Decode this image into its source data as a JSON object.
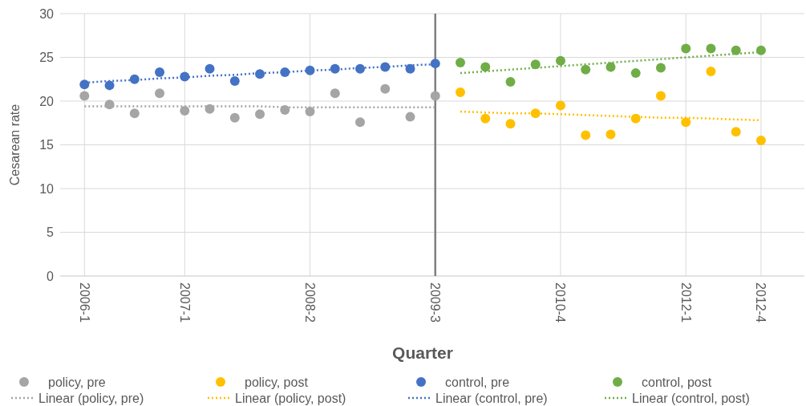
{
  "chart_data": {
    "type": "scatter",
    "xlabel": "Quarter",
    "ylabel": "Cesarean rate",
    "categories": [
      "2006-1",
      null,
      null,
      null,
      "2007-1",
      null,
      null,
      null,
      null,
      "2008-2",
      null,
      null,
      null,
      null,
      "2009-3",
      null,
      null,
      null,
      null,
      "2010-4",
      null,
      null,
      null,
      null,
      "2012-1",
      null,
      null,
      "2012-4"
    ],
    "ylim": [
      0,
      30
    ],
    "yticks": [
      0,
      5,
      10,
      15,
      20,
      25,
      30
    ],
    "grid": true,
    "legend": "bottom",
    "marker": "circle",
    "ref_lines": [
      {
        "axis": "x",
        "value": "2009-3",
        "color": "#7f7f7f"
      }
    ],
    "series": [
      {
        "name": "policy, pre",
        "color": "#a5a5a5",
        "values": [
          20.6,
          19.6,
          18.6,
          20.9,
          18.9,
          19.1,
          18.1,
          18.5,
          19.0,
          18.8,
          20.9,
          17.6,
          21.4,
          18.2,
          20.6,
          null,
          null,
          null,
          null,
          null,
          null,
          null,
          null,
          null,
          null,
          null,
          null,
          null
        ]
      },
      {
        "name": "policy, post",
        "color": "#ffc000",
        "values": [
          null,
          null,
          null,
          null,
          null,
          null,
          null,
          null,
          null,
          null,
          null,
          null,
          null,
          null,
          null,
          21.0,
          18.0,
          17.4,
          18.6,
          19.5,
          16.1,
          16.2,
          18.0,
          20.6,
          17.6,
          23.4,
          16.5,
          15.5
        ]
      },
      {
        "name": "control, pre",
        "color": "#4472c4",
        "values": [
          21.9,
          21.8,
          22.5,
          23.3,
          22.8,
          23.7,
          22.3,
          23.1,
          23.3,
          23.5,
          23.7,
          23.7,
          23.9,
          23.7,
          24.3,
          null,
          null,
          null,
          null,
          null,
          null,
          null,
          null,
          null,
          null,
          null,
          null,
          null
        ]
      },
      {
        "name": "control, post",
        "color": "#70ad47",
        "values": [
          null,
          null,
          null,
          null,
          null,
          null,
          null,
          null,
          null,
          null,
          null,
          null,
          null,
          null,
          null,
          24.4,
          23.9,
          22.2,
          24.2,
          24.6,
          23.6,
          23.9,
          23.2,
          23.8,
          26.0,
          26.0,
          25.8,
          25.8
        ]
      },
      {
        "name": "Linear (policy, pre)",
        "type": "line",
        "line_style": "dotted",
        "marker": "none",
        "color": "#a5a5a5",
        "values": [
          19.4,
          19.4,
          19.4,
          19.4,
          19.4,
          19.4,
          19.4,
          19.4,
          19.3,
          19.3,
          19.3,
          19.3,
          19.3,
          19.3,
          19.3,
          null,
          null,
          null,
          null,
          null,
          null,
          null,
          null,
          null,
          null,
          null,
          null,
          null
        ]
      },
      {
        "name": "Linear (policy, post)",
        "type": "line",
        "line_style": "dotted",
        "marker": "none",
        "color": "#ffc000",
        "values": [
          null,
          null,
          null,
          null,
          null,
          null,
          null,
          null,
          null,
          null,
          null,
          null,
          null,
          null,
          null,
          18.8,
          18.7,
          18.6,
          18.6,
          18.5,
          18.4,
          18.3,
          18.2,
          18.1,
          18.1,
          18.0,
          17.9,
          17.8
        ]
      },
      {
        "name": "Linear (control, pre)",
        "type": "line",
        "line_style": "dotted",
        "marker": "none",
        "color": "#4472c4",
        "values": [
          22.1,
          22.3,
          22.4,
          22.6,
          22.7,
          22.9,
          23.0,
          23.2,
          23.3,
          23.5,
          23.6,
          23.8,
          23.9,
          24.1,
          24.2,
          null,
          null,
          null,
          null,
          null,
          null,
          null,
          null,
          null,
          null,
          null,
          null,
          null
        ]
      },
      {
        "name": "Linear (control, post)",
        "type": "line",
        "line_style": "dotted",
        "marker": "none",
        "color": "#70ad47",
        "values": [
          null,
          null,
          null,
          null,
          null,
          null,
          null,
          null,
          null,
          null,
          null,
          null,
          null,
          null,
          null,
          23.2,
          23.4,
          23.6,
          23.8,
          24.0,
          24.2,
          24.4,
          24.6,
          24.8,
          25.0,
          25.2,
          25.4,
          25.6
        ]
      }
    ]
  }
}
